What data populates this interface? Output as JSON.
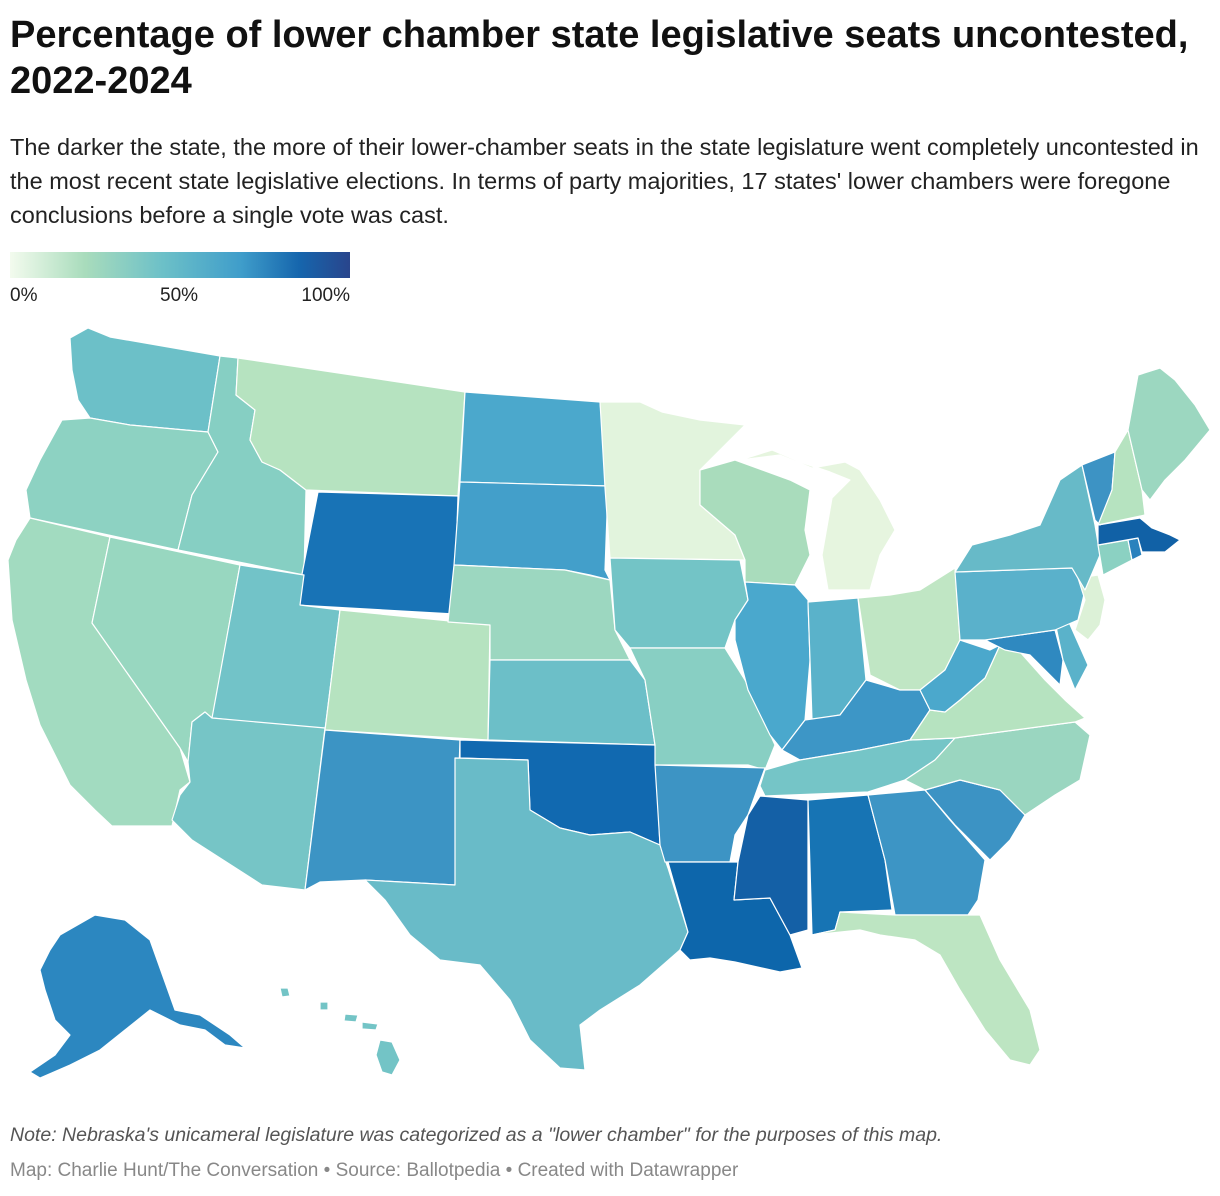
{
  "title": "Percentage of lower chamber state legislative seats uncontested, 2022-2024",
  "subtitle": "The darker the state, the more of their lower-chamber seats in the state legislature went completely uncontested in the most recent state legislative elections. In terms of party majorities, 17 states' lower chambers were foregone conclusions before a single vote was cast.",
  "legend": {
    "ticks": [
      "0%",
      "50%",
      "100%"
    ],
    "scale_min": 0,
    "scale_max": 100,
    "colors": [
      "#f3fbee",
      "#a9dcbc",
      "#6cc0c8",
      "#3f9dca",
      "#1666ad",
      "#29458c"
    ]
  },
  "map": {
    "region": "United States",
    "states": [
      {
        "name": "Washington",
        "color": "#6cc0c8"
      },
      {
        "name": "Oregon",
        "color": "#8dd2c2"
      },
      {
        "name": "California",
        "color": "#a2dbc0"
      },
      {
        "name": "Idaho",
        "color": "#86cfc3"
      },
      {
        "name": "Nevada",
        "color": "#98d7c0"
      },
      {
        "name": "Montana",
        "color": "#b6e3c0"
      },
      {
        "name": "Wyoming",
        "color": "#1873b6"
      },
      {
        "name": "Utah",
        "color": "#72c3c8"
      },
      {
        "name": "Arizona",
        "color": "#76c5c6"
      },
      {
        "name": "Colorado",
        "color": "#b6e3c0"
      },
      {
        "name": "New Mexico",
        "color": "#3c94c4"
      },
      {
        "name": "North Dakota",
        "color": "#4ba8cc"
      },
      {
        "name": "South Dakota",
        "color": "#439fca"
      },
      {
        "name": "Nebraska",
        "color": "#9cd7c0"
      },
      {
        "name": "Kansas",
        "color": "#6cbfc8"
      },
      {
        "name": "Oklahoma",
        "color": "#1169b0"
      },
      {
        "name": "Texas",
        "color": "#69bbc8"
      },
      {
        "name": "Minnesota",
        "color": "#e2f4dd"
      },
      {
        "name": "Iowa",
        "color": "#73c4c6"
      },
      {
        "name": "Missouri",
        "color": "#88cfc3"
      },
      {
        "name": "Arkansas",
        "color": "#3d94c4"
      },
      {
        "name": "Louisiana",
        "color": "#0d66ab"
      },
      {
        "name": "Wisconsin",
        "color": "#a9dcbc"
      },
      {
        "name": "Illinois",
        "color": "#4aa8cd"
      },
      {
        "name": "Michigan",
        "color": "#e6f5df"
      },
      {
        "name": "Indiana",
        "color": "#5ab2ca"
      },
      {
        "name": "Ohio",
        "color": "#c0e6c4"
      },
      {
        "name": "Kentucky",
        "color": "#3d96c6"
      },
      {
        "name": "Tennessee",
        "color": "#75c5c7"
      },
      {
        "name": "Mississippi",
        "color": "#1460a6"
      },
      {
        "name": "Alabama",
        "color": "#1774b4"
      },
      {
        "name": "Georgia",
        "color": "#3d95c5"
      },
      {
        "name": "Florida",
        "color": "#bde5c2"
      },
      {
        "name": "South Carolina",
        "color": "#3c93c4"
      },
      {
        "name": "North Carolina",
        "color": "#9ad6c0"
      },
      {
        "name": "Virginia",
        "color": "#b6e3c0"
      },
      {
        "name": "West Virginia",
        "color": "#4ba8cc"
      },
      {
        "name": "Maryland",
        "color": "#2f89c0"
      },
      {
        "name": "Delaware",
        "color": "#5ab2ca"
      },
      {
        "name": "Pennsylvania",
        "color": "#5ab1cb"
      },
      {
        "name": "New Jersey",
        "color": "#dcf1d7"
      },
      {
        "name": "New York",
        "color": "#67bac8"
      },
      {
        "name": "Connecticut",
        "color": "#8bd1c2"
      },
      {
        "name": "Rhode Island",
        "color": "#2a82bd"
      },
      {
        "name": "Massachusetts",
        "color": "#1161a6"
      },
      {
        "name": "Vermont",
        "color": "#3d93c4"
      },
      {
        "name": "New Hampshire",
        "color": "#b6e3c0"
      },
      {
        "name": "Maine",
        "color": "#9cd7c0"
      },
      {
        "name": "Alaska",
        "color": "#2c87c0"
      },
      {
        "name": "Hawaii",
        "color": "#73c4c6"
      }
    ]
  },
  "note": "Note: Nebraska's unicameral legislature was categorized as a \"lower chamber\" for the purposes of this map.",
  "credit": "Map: Charlie Hunt/The Conversation • Source: Ballotpedia • Created with Datawrapper"
}
